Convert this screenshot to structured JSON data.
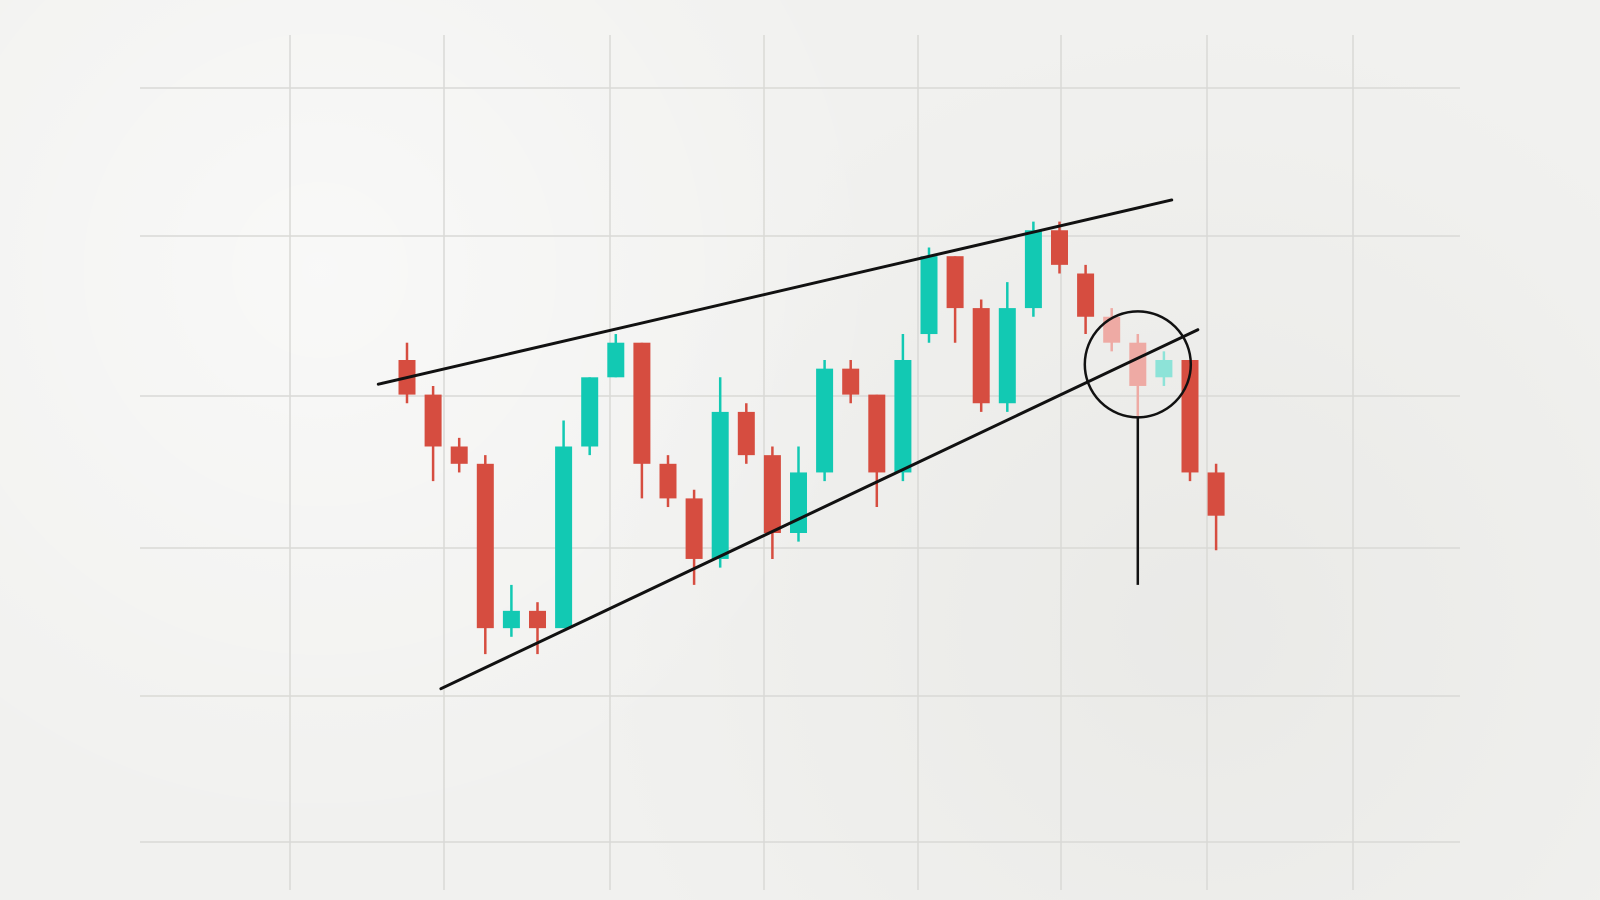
{
  "chart_data": {
    "type": "candlestick",
    "pattern": "rising wedge",
    "colors": {
      "up": "#12c9b3",
      "down": "#d64d40",
      "up_faded": "#8de3d8",
      "down_faded": "#eeaaa4",
      "trendline": "#111111",
      "grid": "#d9d9d6",
      "background": "#f1f1ef"
    },
    "candles": [
      {
        "open": 100,
        "close": 96,
        "high": 102,
        "low": 95
      },
      {
        "open": 96,
        "close": 90,
        "high": 97,
        "low": 86
      },
      {
        "open": 90,
        "close": 88,
        "high": 91,
        "low": 87
      },
      {
        "open": 88,
        "close": 69,
        "high": 89,
        "low": 66
      },
      {
        "open": 69,
        "close": 71,
        "high": 74,
        "low": 68
      },
      {
        "open": 71,
        "close": 69,
        "high": 72,
        "low": 66
      },
      {
        "open": 69,
        "close": 90,
        "high": 93,
        "low": 69
      },
      {
        "open": 90,
        "close": 98,
        "high": 98,
        "low": 89
      },
      {
        "open": 98,
        "close": 102,
        "high": 103,
        "low": 98
      },
      {
        "open": 102,
        "close": 88,
        "high": 102,
        "low": 84
      },
      {
        "open": 88,
        "close": 84,
        "high": 89,
        "low": 83
      },
      {
        "open": 84,
        "close": 77,
        "high": 85,
        "low": 74
      },
      {
        "open": 77,
        "close": 94,
        "high": 98,
        "low": 76
      },
      {
        "open": 94,
        "close": 89,
        "high": 95,
        "low": 88
      },
      {
        "open": 89,
        "close": 80,
        "high": 90,
        "low": 77
      },
      {
        "open": 80,
        "close": 87,
        "high": 90,
        "low": 79
      },
      {
        "open": 87,
        "close": 99,
        "high": 100,
        "low": 86
      },
      {
        "open": 99,
        "close": 96,
        "high": 100,
        "low": 95
      },
      {
        "open": 96,
        "close": 87,
        "high": 96,
        "low": 83
      },
      {
        "open": 87,
        "close": 100,
        "high": 103,
        "low": 86
      },
      {
        "open": 103,
        "close": 112,
        "high": 113,
        "low": 102
      },
      {
        "open": 112,
        "close": 106,
        "high": 112,
        "low": 102
      },
      {
        "open": 106,
        "close": 95,
        "high": 107,
        "low": 94
      },
      {
        "open": 95,
        "close": 106,
        "high": 109,
        "low": 94
      },
      {
        "open": 106,
        "close": 115,
        "high": 116,
        "low": 105
      },
      {
        "open": 115,
        "close": 111,
        "high": 116,
        "low": 110
      },
      {
        "open": 110,
        "close": 105,
        "high": 111,
        "low": 103
      },
      {
        "open": 105,
        "close": 102,
        "high": 106,
        "low": 101,
        "faded": true
      },
      {
        "open": 102,
        "close": 97,
        "high": 103,
        "low": 93,
        "faded": true
      },
      {
        "open": 98,
        "close": 100,
        "high": 101,
        "low": 97,
        "faded": true
      },
      {
        "open": 100,
        "close": 87,
        "high": 100,
        "low": 86
      },
      {
        "open": 87,
        "close": 82,
        "high": 88,
        "low": 78
      }
    ],
    "upper_trendline": {
      "from": {
        "index": -1.1,
        "value": 97.2
      },
      "to": {
        "index": 29.3,
        "value": 118.5
      }
    },
    "lower_trendline": {
      "from": {
        "index": 1.3,
        "value": 62.0
      },
      "to": {
        "index": 30.3,
        "value": 103.5
      }
    },
    "breakout_marker": {
      "index": 28.0,
      "value": 99.5,
      "target_value": 74.0
    },
    "grid": true,
    "title": "",
    "xlabel": "",
    "ylabel": ""
  }
}
